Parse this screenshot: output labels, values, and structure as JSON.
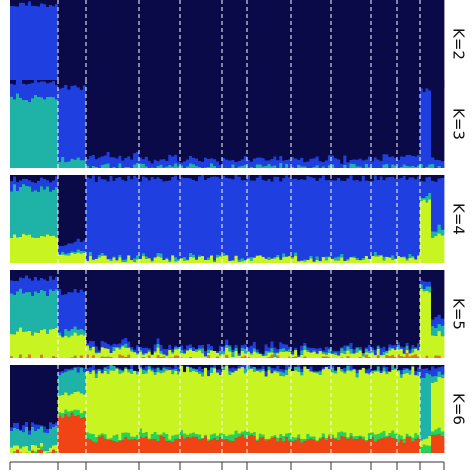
{
  "chart_data": {
    "type": "bar",
    "stacked": true,
    "y_range": [
      0,
      1
    ],
    "n_population_groups": 13,
    "panels": [
      {
        "label": "K=2",
        "k": 2,
        "cluster_colors": [
          "#0a0a48",
          "#1f3fe0"
        ],
        "groups": [
          {
            "group": 1,
            "q": [
              0.05,
              0.95
            ]
          },
          {
            "group": 2,
            "q": [
              0.98,
              0.02
            ]
          },
          {
            "group": 3,
            "q": [
              0.99,
              0.01
            ]
          },
          {
            "group": 4,
            "q": [
              0.99,
              0.01
            ]
          },
          {
            "group": 5,
            "q": [
              0.99,
              0.01
            ]
          },
          {
            "group": 6,
            "q": [
              0.99,
              0.01
            ]
          },
          {
            "group": 7,
            "q": [
              0.99,
              0.01
            ]
          },
          {
            "group": 8,
            "q": [
              0.99,
              0.01
            ]
          },
          {
            "group": 9,
            "q": [
              0.99,
              0.01
            ]
          },
          {
            "group": 10,
            "q": [
              0.99,
              0.01
            ]
          },
          {
            "group": 11,
            "q": [
              0.99,
              0.01
            ]
          },
          {
            "group": 12,
            "q": [
              0.99,
              0.01
            ]
          },
          {
            "group": 13,
            "q": [
              0.99,
              0.01
            ]
          }
        ]
      },
      {
        "label": "K=3",
        "k": 3,
        "cluster_colors": [
          "#0a0a48",
          "#1f3fe0",
          "#1fb3a8"
        ],
        "groups": [
          {
            "group": 1,
            "q": [
              0.02,
              0.18,
              0.8
            ]
          },
          {
            "group": 2,
            "q": [
              0.08,
              0.82,
              0.1
            ]
          },
          {
            "group": 3,
            "q": [
              0.88,
              0.1,
              0.02
            ]
          },
          {
            "group": 4,
            "q": [
              0.9,
              0.08,
              0.02
            ]
          },
          {
            "group": 5,
            "q": [
              0.91,
              0.07,
              0.02
            ]
          },
          {
            "group": 6,
            "q": [
              0.9,
              0.08,
              0.02
            ]
          },
          {
            "group": 7,
            "q": [
              0.9,
              0.08,
              0.02
            ]
          },
          {
            "group": 8,
            "q": [
              0.9,
              0.08,
              0.02
            ]
          },
          {
            "group": 9,
            "q": [
              0.9,
              0.08,
              0.02
            ]
          },
          {
            "group": 10,
            "q": [
              0.89,
              0.09,
              0.02
            ]
          },
          {
            "group": 11,
            "q": [
              0.88,
              0.1,
              0.02
            ]
          },
          {
            "group": 12,
            "q": [
              0.1,
              0.88,
              0.02
            ]
          },
          {
            "group": 13,
            "q": [
              0.9,
              0.08,
              0.02
            ]
          }
        ]
      },
      {
        "label": "K=4",
        "k": 4,
        "cluster_colors": [
          "#0a0a48",
          "#1f3fe0",
          "#1fb3a8",
          "#c8f522"
        ],
        "groups": [
          {
            "group": 1,
            "q": [
              0.05,
              0.1,
              0.55,
              0.3
            ]
          },
          {
            "group": 2,
            "q": [
              0.75,
              0.1,
              0.05,
              0.1
            ]
          },
          {
            "group": 3,
            "q": [
              0.04,
              0.9,
              0.01,
              0.05
            ]
          },
          {
            "group": 4,
            "q": [
              0.04,
              0.9,
              0.01,
              0.05
            ]
          },
          {
            "group": 5,
            "q": [
              0.04,
              0.9,
              0.01,
              0.05
            ]
          },
          {
            "group": 6,
            "q": [
              0.04,
              0.9,
              0.01,
              0.05
            ]
          },
          {
            "group": 7,
            "q": [
              0.04,
              0.9,
              0.01,
              0.05
            ]
          },
          {
            "group": 8,
            "q": [
              0.04,
              0.9,
              0.01,
              0.05
            ]
          },
          {
            "group": 9,
            "q": [
              0.04,
              0.9,
              0.01,
              0.05
            ]
          },
          {
            "group": 10,
            "q": [
              0.04,
              0.9,
              0.01,
              0.05
            ]
          },
          {
            "group": 11,
            "q": [
              0.04,
              0.89,
              0.01,
              0.06
            ]
          },
          {
            "group": 12,
            "q": [
              0.05,
              0.2,
              0.05,
              0.7
            ]
          },
          {
            "group": 13,
            "q": [
              0.06,
              0.55,
              0.07,
              0.32
            ]
          }
        ]
      },
      {
        "label": "K=5",
        "k": 5,
        "cluster_colors": [
          "#0a0a48",
          "#1f3fe0",
          "#1fb3a8",
          "#c8f522",
          "#e07a10"
        ],
        "groups": [
          {
            "group": 1,
            "q": [
              0.1,
              0.15,
              0.45,
              0.3,
              0.0
            ]
          },
          {
            "group": 2,
            "q": [
              0.25,
              0.45,
              0.05,
              0.25,
              0.0
            ]
          },
          {
            "group": 3,
            "q": [
              0.85,
              0.05,
              0.02,
              0.08,
              0.0
            ]
          },
          {
            "group": 4,
            "q": [
              0.88,
              0.04,
              0.02,
              0.06,
              0.0
            ]
          },
          {
            "group": 5,
            "q": [
              0.89,
              0.04,
              0.02,
              0.05,
              0.0
            ]
          },
          {
            "group": 6,
            "q": [
              0.89,
              0.04,
              0.02,
              0.05,
              0.0
            ]
          },
          {
            "group": 7,
            "q": [
              0.88,
              0.05,
              0.02,
              0.05,
              0.0
            ]
          },
          {
            "group": 8,
            "q": [
              0.89,
              0.04,
              0.02,
              0.05,
              0.0
            ]
          },
          {
            "group": 9,
            "q": [
              0.89,
              0.04,
              0.02,
              0.05,
              0.0
            ]
          },
          {
            "group": 10,
            "q": [
              0.89,
              0.04,
              0.02,
              0.05,
              0.0
            ]
          },
          {
            "group": 11,
            "q": [
              0.86,
              0.05,
              0.02,
              0.05,
              0.02
            ]
          },
          {
            "group": 12,
            "q": [
              0.1,
              0.05,
              0.05,
              0.8,
              0.0
            ]
          },
          {
            "group": 13,
            "q": [
              0.55,
              0.1,
              0.1,
              0.25,
              0.0
            ]
          }
        ]
      },
      {
        "label": "K=6",
        "k": 6,
        "cluster_colors": [
          "#0a0a48",
          "#1f3fe0",
          "#1fb3a8",
          "#c8f522",
          "#22d45a",
          "#f04414"
        ],
        "groups": [
          {
            "group": 1,
            "q": [
              0.7,
              0.05,
              0.2,
              0.05,
              0.0,
              0.0
            ]
          },
          {
            "group": 2,
            "q": [
              0.05,
              0.03,
              0.25,
              0.2,
              0.05,
              0.42
            ]
          },
          {
            "group": 3,
            "q": [
              0.03,
              0.02,
              0.02,
              0.72,
              0.05,
              0.16
            ]
          },
          {
            "group": 4,
            "q": [
              0.03,
              0.02,
              0.02,
              0.72,
              0.05,
              0.16
            ]
          },
          {
            "group": 5,
            "q": [
              0.04,
              0.03,
              0.02,
              0.7,
              0.05,
              0.16
            ]
          },
          {
            "group": 6,
            "q": [
              0.03,
              0.02,
              0.02,
              0.72,
              0.05,
              0.16
            ]
          },
          {
            "group": 7,
            "q": [
              0.03,
              0.02,
              0.02,
              0.72,
              0.05,
              0.16
            ]
          },
          {
            "group": 8,
            "q": [
              0.03,
              0.02,
              0.02,
              0.72,
              0.05,
              0.16
            ]
          },
          {
            "group": 9,
            "q": [
              0.03,
              0.02,
              0.02,
              0.72,
              0.05,
              0.16
            ]
          },
          {
            "group": 10,
            "q": [
              0.03,
              0.02,
              0.02,
              0.72,
              0.05,
              0.16
            ]
          },
          {
            "group": 11,
            "q": [
              0.04,
              0.02,
              0.02,
              0.72,
              0.05,
              0.15
            ]
          },
          {
            "group": 12,
            "q": [
              0.02,
              0.08,
              0.72,
              0.1,
              0.08,
              0.0
            ]
          },
          {
            "group": 13,
            "q": [
              0.04,
              0.08,
              0.06,
              0.55,
              0.07,
              0.2
            ]
          }
        ]
      }
    ]
  }
}
